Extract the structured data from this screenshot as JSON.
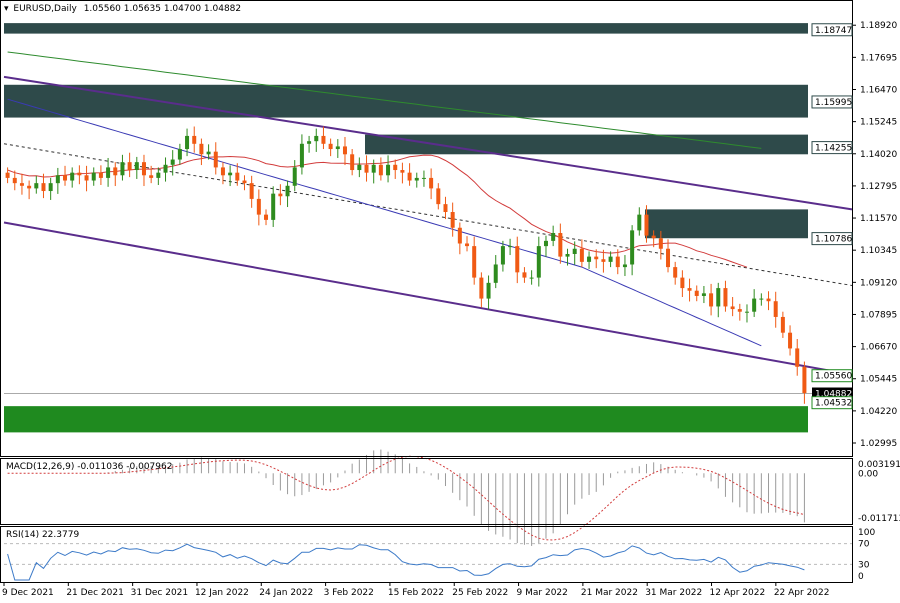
{
  "header": {
    "symbol": "EURUSD,Daily",
    "ohlc": "1.05560 1.05635 1.04700 1.04882"
  },
  "macd": {
    "label": "MACD(12,26,9) -0.011036 -0.007962",
    "ticks": [
      "0.003191",
      "0.00",
      "-0.011713"
    ]
  },
  "rsi": {
    "label": "RSI(14) 22.3779",
    "ticks": [
      "100",
      "70",
      "30",
      "0"
    ]
  },
  "price_axis": [
    "1.18920",
    "1.17695",
    "1.16470",
    "1.15245",
    "1.14020",
    "1.12795",
    "1.11570",
    "1.10345",
    "1.09120",
    "1.07895",
    "1.06670",
    "1.05445",
    "1.04220",
    "1.02995"
  ],
  "level_tags": [
    {
      "text": "1.18747",
      "style": "outline"
    },
    {
      "text": "1.15995",
      "style": "outline"
    },
    {
      "text": "1.14255",
      "style": "outline"
    },
    {
      "text": "1.10786",
      "style": "outline"
    },
    {
      "text": "1.05560",
      "style": "outline-green"
    },
    {
      "text": "1.04882",
      "style": "current"
    },
    {
      "text": "1.04532",
      "style": "outline-green"
    }
  ],
  "date_axis": [
    "9 Dec 2021",
    "21 Dec 2021",
    "31 Dec 2021",
    "12 Jan 2022",
    "24 Jan 2022",
    "3 Feb 2022",
    "15 Feb 2022",
    "25 Feb 2022",
    "9 Mar 2022",
    "21 Mar 2022",
    "31 Mar 2022",
    "12 Apr 2022",
    "22 Apr 2022"
  ],
  "colors": {
    "bull": "#2e8b1e",
    "bear": "#f05a14",
    "zone_dark": "#2e4a4a",
    "zone_green": "#1f8a1f",
    "channel": "#5a2d8c",
    "ma_red": "#d23c3c",
    "ma_blue": "#3a3ab4",
    "ma_green": "#2e8b2e"
  },
  "chart_data": {
    "type": "candlestick",
    "symbol": "EURUSD",
    "timeframe": "Daily",
    "x_start": "9 Dec 2021",
    "x_end": "28 Apr 2022",
    "ylim": [
      1.025,
      1.195
    ],
    "close_values": [
      1.131,
      1.129,
      1.128,
      1.127,
      1.129,
      1.126,
      1.129,
      1.132,
      1.13,
      1.133,
      1.132,
      1.13,
      1.133,
      1.131,
      1.135,
      1.132,
      1.137,
      1.134,
      1.137,
      1.132,
      1.131,
      1.133,
      1.136,
      1.138,
      1.142,
      1.147,
      1.144,
      1.14,
      1.141,
      1.135,
      1.132,
      1.133,
      1.13,
      1.129,
      1.123,
      1.117,
      1.115,
      1.125,
      1.124,
      1.128,
      1.135,
      1.144,
      1.145,
      1.147,
      1.144,
      1.142,
      1.143,
      1.14,
      1.134,
      1.136,
      1.133,
      1.136,
      1.132,
      1.136,
      1.134,
      1.133,
      1.13,
      1.131,
      1.131,
      1.127,
      1.121,
      1.118,
      1.112,
      1.106,
      1.105,
      1.093,
      1.085,
      1.091,
      1.098,
      1.105,
      1.105,
      1.095,
      1.093,
      1.093,
      1.105,
      1.107,
      1.11,
      1.101,
      1.102,
      1.104,
      1.099,
      1.101,
      1.1,
      1.099,
      1.101,
      1.097,
      1.098,
      1.111,
      1.117,
      1.109,
      1.108,
      1.104,
      1.097,
      1.093,
      1.089,
      1.088,
      1.086,
      1.087,
      1.082,
      1.089,
      1.082,
      1.081,
      1.08,
      1.08,
      1.085,
      1.085,
      1.084,
      1.078,
      1.072,
      1.066,
      1.059,
      1.049
    ],
    "series": [
      {
        "name": "MACD(12,26,9)",
        "last_main": -0.011036,
        "last_signal": -0.007962
      },
      {
        "name": "RSI(14)",
        "last": 22.3779
      }
    ],
    "levels": [
      1.18747,
      1.15995,
      1.14255,
      1.10786,
      1.0556,
      1.04532
    ]
  }
}
